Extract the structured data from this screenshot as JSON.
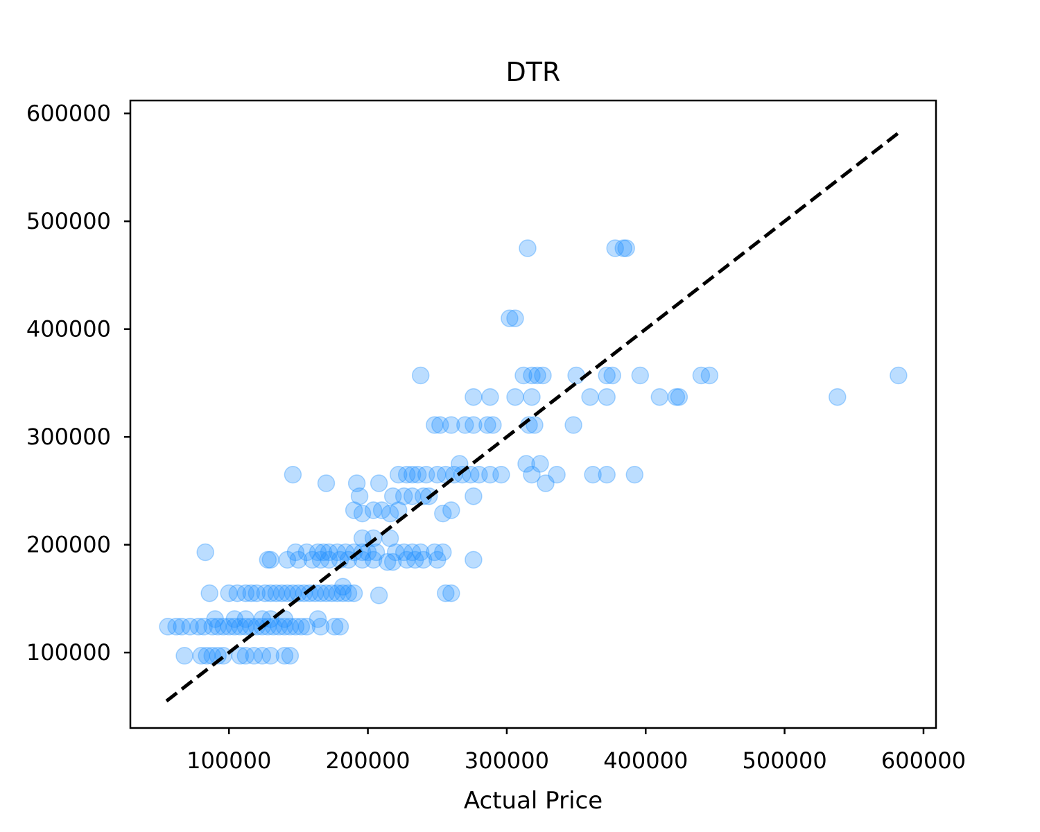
{
  "chart_data": {
    "type": "scatter",
    "title": "DTR",
    "xlabel": "Actual Price",
    "ylabel": "",
    "xlim": [
      29000,
      609000
    ],
    "ylim": [
      30000,
      612000
    ],
    "x_ticks": [
      100000,
      200000,
      300000,
      400000,
      500000,
      600000
    ],
    "y_ticks": [
      100000,
      200000,
      300000,
      400000,
      500000,
      600000
    ],
    "x_tick_labels": [
      "100000",
      "200000",
      "300000",
      "400000",
      "500000",
      "600000"
    ],
    "y_tick_labels": [
      "100000",
      "200000",
      "300000",
      "400000",
      "500000",
      "600000"
    ],
    "grid": false,
    "colors": {
      "points": "#1e90ff",
      "reference_line": "#000000"
    },
    "reference_line": {
      "style": "dashed",
      "x": [
        55000,
        583000
      ],
      "y": [
        55000,
        583000
      ]
    },
    "series": [
      {
        "values": [
          [
            56000,
            124000
          ],
          [
            62000,
            124000
          ],
          [
            66000,
            124000
          ],
          [
            72000,
            124000
          ],
          [
            78000,
            124000
          ],
          [
            82000,
            124000
          ],
          [
            88000,
            124000
          ],
          [
            92000,
            124000
          ],
          [
            96000,
            124000
          ],
          [
            100000,
            124000
          ],
          [
            104000,
            124000
          ],
          [
            108000,
            124000
          ],
          [
            112000,
            124000
          ],
          [
            116000,
            124000
          ],
          [
            120000,
            124000
          ],
          [
            124000,
            124000
          ],
          [
            128000,
            124000
          ],
          [
            132000,
            124000
          ],
          [
            136000,
            124000
          ],
          [
            140000,
            124000
          ],
          [
            144000,
            124000
          ],
          [
            148000,
            124000
          ],
          [
            152000,
            124000
          ],
          [
            156000,
            124000
          ],
          [
            166000,
            124000
          ],
          [
            176000,
            124000
          ],
          [
            180000,
            124000
          ],
          [
            90000,
            131000
          ],
          [
            104000,
            131000
          ],
          [
            112000,
            131000
          ],
          [
            124000,
            131000
          ],
          [
            130000,
            131000
          ],
          [
            140000,
            131000
          ],
          [
            164000,
            131000
          ],
          [
            68000,
            97000
          ],
          [
            80000,
            97000
          ],
          [
            84000,
            97000
          ],
          [
            88000,
            97000
          ],
          [
            92000,
            97000
          ],
          [
            96000,
            97000
          ],
          [
            108000,
            97000
          ],
          [
            112000,
            97000
          ],
          [
            118000,
            97000
          ],
          [
            124000,
            97000
          ],
          [
            130000,
            97000
          ],
          [
            140000,
            97000
          ],
          [
            144000,
            97000
          ],
          [
            86000,
            155000
          ],
          [
            100000,
            155000
          ],
          [
            106000,
            155000
          ],
          [
            112000,
            155000
          ],
          [
            116000,
            155000
          ],
          [
            120000,
            155000
          ],
          [
            126000,
            155000
          ],
          [
            130000,
            155000
          ],
          [
            134000,
            155000
          ],
          [
            138000,
            155000
          ],
          [
            142000,
            155000
          ],
          [
            146000,
            155000
          ],
          [
            150000,
            155000
          ],
          [
            154000,
            155000
          ],
          [
            158000,
            155000
          ],
          [
            162000,
            155000
          ],
          [
            166000,
            155000
          ],
          [
            170000,
            155000
          ],
          [
            174000,
            155000
          ],
          [
            178000,
            155000
          ],
          [
            182000,
            155000
          ],
          [
            186000,
            155000
          ],
          [
            190000,
            155000
          ],
          [
            208000,
            153000
          ],
          [
            256000,
            155000
          ],
          [
            260000,
            155000
          ],
          [
            182000,
            161000
          ],
          [
            83000,
            193000
          ],
          [
            148000,
            193000
          ],
          [
            156000,
            193000
          ],
          [
            164000,
            193000
          ],
          [
            168000,
            193000
          ],
          [
            172000,
            193000
          ],
          [
            178000,
            193000
          ],
          [
            184000,
            193000
          ],
          [
            190000,
            193000
          ],
          [
            196000,
            193000
          ],
          [
            200000,
            193000
          ],
          [
            206000,
            193000
          ],
          [
            220000,
            193000
          ],
          [
            226000,
            193000
          ],
          [
            232000,
            193000
          ],
          [
            238000,
            193000
          ],
          [
            248000,
            193000
          ],
          [
            254000,
            193000
          ],
          [
            128000,
            186000
          ],
          [
            130000,
            186000
          ],
          [
            142000,
            186000
          ],
          [
            150000,
            186000
          ],
          [
            160000,
            186000
          ],
          [
            166000,
            186000
          ],
          [
            172000,
            186000
          ],
          [
            180000,
            186000
          ],
          [
            186000,
            186000
          ],
          [
            196000,
            186000
          ],
          [
            204000,
            186000
          ],
          [
            214000,
            184000
          ],
          [
            218000,
            184000
          ],
          [
            228000,
            186000
          ],
          [
            234000,
            186000
          ],
          [
            240000,
            186000
          ],
          [
            250000,
            186000
          ],
          [
            276000,
            186000
          ],
          [
            196000,
            206000
          ],
          [
            204000,
            206000
          ],
          [
            216000,
            206000
          ],
          [
            190000,
            232000
          ],
          [
            196000,
            229000
          ],
          [
            204000,
            232000
          ],
          [
            210000,
            232000
          ],
          [
            216000,
            229000
          ],
          [
            222000,
            232000
          ],
          [
            254000,
            229000
          ],
          [
            260000,
            232000
          ],
          [
            194000,
            245000
          ],
          [
            218000,
            245000
          ],
          [
            226000,
            245000
          ],
          [
            232000,
            245000
          ],
          [
            240000,
            245000
          ],
          [
            244000,
            245000
          ],
          [
            276000,
            245000
          ],
          [
            146000,
            265000
          ],
          [
            170000,
            257000
          ],
          [
            192000,
            257000
          ],
          [
            208000,
            257000
          ],
          [
            222000,
            265000
          ],
          [
            228000,
            265000
          ],
          [
            232000,
            265000
          ],
          [
            236000,
            265000
          ],
          [
            242000,
            265000
          ],
          [
            250000,
            265000
          ],
          [
            256000,
            265000
          ],
          [
            262000,
            265000
          ],
          [
            268000,
            265000
          ],
          [
            274000,
            265000
          ],
          [
            280000,
            265000
          ],
          [
            288000,
            265000
          ],
          [
            296000,
            265000
          ],
          [
            318000,
            265000
          ],
          [
            328000,
            257000
          ],
          [
            336000,
            265000
          ],
          [
            362000,
            265000
          ],
          [
            372000,
            265000
          ],
          [
            392000,
            265000
          ],
          [
            266000,
            275000
          ],
          [
            314000,
            275000
          ],
          [
            324000,
            275000
          ],
          [
            248000,
            311000
          ],
          [
            252000,
            311000
          ],
          [
            260000,
            311000
          ],
          [
            270000,
            311000
          ],
          [
            276000,
            311000
          ],
          [
            286000,
            311000
          ],
          [
            290000,
            311000
          ],
          [
            316000,
            311000
          ],
          [
            320000,
            311000
          ],
          [
            348000,
            311000
          ],
          [
            276000,
            337000
          ],
          [
            288000,
            337000
          ],
          [
            306000,
            337000
          ],
          [
            318000,
            337000
          ],
          [
            360000,
            337000
          ],
          [
            372000,
            337000
          ],
          [
            410000,
            337000
          ],
          [
            422000,
            337000
          ],
          [
            424000,
            337000
          ],
          [
            538000,
            337000
          ],
          [
            238000,
            357000
          ],
          [
            312000,
            357000
          ],
          [
            318000,
            357000
          ],
          [
            322000,
            357000
          ],
          [
            326000,
            357000
          ],
          [
            350000,
            357000
          ],
          [
            372000,
            357000
          ],
          [
            376000,
            357000
          ],
          [
            396000,
            357000
          ],
          [
            440000,
            357000
          ],
          [
            446000,
            357000
          ],
          [
            582000,
            357000
          ],
          [
            302000,
            410000
          ],
          [
            306000,
            410000
          ],
          [
            315000,
            475000
          ],
          [
            378000,
            475000
          ],
          [
            384000,
            475000
          ],
          [
            386000,
            475000
          ]
        ]
      }
    ]
  }
}
